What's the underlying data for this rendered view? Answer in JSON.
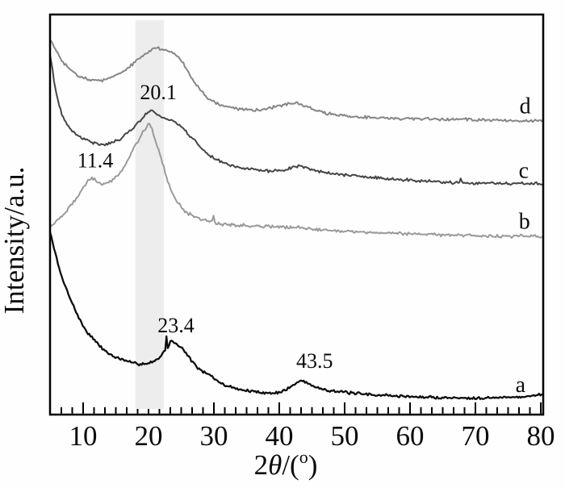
{
  "figure": {
    "background": "#fefefe",
    "axis_color": "#000000",
    "text_color": "#0a0a0a"
  },
  "chart_data": {
    "type": "line",
    "title": "",
    "xlabel": "2θ/(°)",
    "xlabel_parts": [
      {
        "t": "2"
      },
      {
        "t": "θ",
        "italic": true
      },
      {
        "t": "/("
      },
      {
        "t": "o",
        "sup": true
      },
      {
        "t": ")"
      }
    ],
    "ylabel": "Intensity/a.u.",
    "xlim": [
      5,
      80
    ],
    "ylim": [
      0,
      100
    ],
    "y_scale_note": "intensity in arbitrary units, normalized 0-100 of plot height",
    "x_major_ticks": [
      10,
      20,
      30,
      40,
      50,
      60,
      70,
      80
    ],
    "x_minor_ticks_per_major": 5,
    "grid": false,
    "legend_position": "curve-end-labels-right",
    "highlight_band": {
      "x0": 18.0,
      "x1": 22.35,
      "color": "#ededed"
    },
    "annotations": [
      {
        "text": "20.1",
        "x": 21.5,
        "y": 80.0
      },
      {
        "text": "11.4",
        "x": 11.85,
        "y": 63.0
      },
      {
        "text": "23.4",
        "x": 24.2,
        "y": 21.8
      },
      {
        "text": "43.5",
        "x": 45.4,
        "y": 12.9
      }
    ],
    "series": [
      {
        "name": "a",
        "color": "#0d0d0d",
        "stroke_width": 2.3,
        "noise": 0.42,
        "seed": 7,
        "label": {
          "text": "a",
          "x": 76.9,
          "y": 6.9
        },
        "points": [
          [
            4.9,
            45.8
          ],
          [
            5.7,
            40.7
          ],
          [
            6.5,
            35.5
          ],
          [
            7.8,
            30.0
          ],
          [
            9.0,
            25.4
          ],
          [
            10.2,
            21.6
          ],
          [
            11.5,
            19.0
          ],
          [
            12.7,
            16.9
          ],
          [
            14.3,
            14.9
          ],
          [
            16.0,
            13.7
          ],
          [
            17.7,
            12.9
          ],
          [
            19.3,
            12.7
          ],
          [
            20.7,
            13.3
          ],
          [
            21.7,
            14.3
          ],
          [
            22.4,
            15.9
          ],
          [
            22.6,
            16.6
          ],
          [
            22.75,
            19.3
          ],
          [
            22.9,
            16.9
          ],
          [
            23.4,
            18.3
          ],
          [
            24.2,
            17.7
          ],
          [
            25.2,
            16.5
          ],
          [
            26.3,
            14.1
          ],
          [
            27.8,
            11.3
          ],
          [
            29.5,
            9.7
          ],
          [
            31.2,
            7.7
          ],
          [
            33.1,
            6.7
          ],
          [
            34.9,
            6.0
          ],
          [
            37.0,
            5.6
          ],
          [
            39.3,
            5.4
          ],
          [
            41.1,
            6.3
          ],
          [
            42.3,
            7.5
          ],
          [
            43.5,
            8.5
          ],
          [
            44.7,
            7.5
          ],
          [
            46.4,
            6.5
          ],
          [
            48.8,
            5.8
          ],
          [
            52.3,
            5.2
          ],
          [
            56.3,
            4.8
          ],
          [
            61.4,
            4.4
          ],
          [
            66.4,
            4.2
          ],
          [
            71.5,
            4.2
          ],
          [
            76.4,
            4.4
          ],
          [
            80.4,
            5.0
          ]
        ]
      },
      {
        "name": "b",
        "color": "#9a9a9a",
        "stroke_width": 2,
        "noise": 0.5,
        "seed": 19,
        "label": {
          "text": "b",
          "x": 77.5,
          "y": 47.8
        },
        "points": [
          [
            4.9,
            46.8
          ],
          [
            5.9,
            48.4
          ],
          [
            7.2,
            50.4
          ],
          [
            8.4,
            52.8
          ],
          [
            9.6,
            55.6
          ],
          [
            10.6,
            58.1
          ],
          [
            11.4,
            59.1
          ],
          [
            12.1,
            58.1
          ],
          [
            13.0,
            57.7
          ],
          [
            14.0,
            58.1
          ],
          [
            14.9,
            59.3
          ],
          [
            16.0,
            61.3
          ],
          [
            17.0,
            64.1
          ],
          [
            18.0,
            67.3
          ],
          [
            19.0,
            70.2
          ],
          [
            19.6,
            71.6
          ],
          [
            20.1,
            72.4
          ],
          [
            20.6,
            71.0
          ],
          [
            21.2,
            67.9
          ],
          [
            22.0,
            63.7
          ],
          [
            22.8,
            59.1
          ],
          [
            23.7,
            55.2
          ],
          [
            24.7,
            52.4
          ],
          [
            25.8,
            50.6
          ],
          [
            27.2,
            49.4
          ],
          [
            28.8,
            48.6
          ],
          [
            29.75,
            48.2
          ],
          [
            29.95,
            49.9
          ],
          [
            30.15,
            48.0
          ],
          [
            30.6,
            47.8
          ],
          [
            33.1,
            47.4
          ],
          [
            35.6,
            47.2
          ],
          [
            38.6,
            47.0
          ],
          [
            41.7,
            46.8
          ],
          [
            45.4,
            46.4
          ],
          [
            49.1,
            46.0
          ],
          [
            52.8,
            45.6
          ],
          [
            56.5,
            45.4
          ],
          [
            60.2,
            45.2
          ],
          [
            64.6,
            45.0
          ],
          [
            68.9,
            44.8
          ],
          [
            73.2,
            44.6
          ],
          [
            76.9,
            44.6
          ],
          [
            80.4,
            44.4
          ]
        ]
      },
      {
        "name": "c",
        "color": "#454545",
        "stroke_width": 2,
        "noise": 0.45,
        "seed": 41,
        "label": {
          "text": "c",
          "x": 77.4,
          "y": 60.5
        },
        "points": [
          [
            4.9,
            90.1
          ],
          [
            5.3,
            86.5
          ],
          [
            5.7,
            81.9
          ],
          [
            6.3,
            77.4
          ],
          [
            6.9,
            74.4
          ],
          [
            7.8,
            72.0
          ],
          [
            8.6,
            70.4
          ],
          [
            9.8,
            69.2
          ],
          [
            10.9,
            68.3
          ],
          [
            12.2,
            67.7
          ],
          [
            13.7,
            67.7
          ],
          [
            15.2,
            68.5
          ],
          [
            16.5,
            70.0
          ],
          [
            17.8,
            72.0
          ],
          [
            18.9,
            73.8
          ],
          [
            19.7,
            75.2
          ],
          [
            20.4,
            76.0
          ],
          [
            21.1,
            75.4
          ],
          [
            22.0,
            74.4
          ],
          [
            23.0,
            73.8
          ],
          [
            24.0,
            73.2
          ],
          [
            25.1,
            71.8
          ],
          [
            26.3,
            69.8
          ],
          [
            27.7,
            67.3
          ],
          [
            29.0,
            65.3
          ],
          [
            30.4,
            63.7
          ],
          [
            31.9,
            62.7
          ],
          [
            33.7,
            61.9
          ],
          [
            35.8,
            61.3
          ],
          [
            38.0,
            60.9
          ],
          [
            40.2,
            61.1
          ],
          [
            42.0,
            61.7
          ],
          [
            43.2,
            62.1
          ],
          [
            44.6,
            61.5
          ],
          [
            46.4,
            60.7
          ],
          [
            49.1,
            60.1
          ],
          [
            52.6,
            59.5
          ],
          [
            56.5,
            58.9
          ],
          [
            60.9,
            58.5
          ],
          [
            65.2,
            58.1
          ],
          [
            67.5,
            58.0
          ],
          [
            67.7,
            59.1
          ],
          [
            67.9,
            57.9
          ],
          [
            70.1,
            57.9
          ],
          [
            75.0,
            57.7
          ],
          [
            80.4,
            57.7
          ]
        ]
      },
      {
        "name": "d",
        "color": "#868686",
        "stroke_width": 2,
        "noise": 0.45,
        "seed": 83,
        "label": {
          "text": "d",
          "x": 77.6,
          "y": 76.6
        },
        "points": [
          [
            4.9,
            93.8
          ],
          [
            5.7,
            91.5
          ],
          [
            6.5,
            89.1
          ],
          [
            7.5,
            87.1
          ],
          [
            8.6,
            85.5
          ],
          [
            9.8,
            84.5
          ],
          [
            11.0,
            83.7
          ],
          [
            12.3,
            83.5
          ],
          [
            13.8,
            83.9
          ],
          [
            15.4,
            85.1
          ],
          [
            16.9,
            86.7
          ],
          [
            18.4,
            88.7
          ],
          [
            19.6,
            90.3
          ],
          [
            20.7,
            91.3
          ],
          [
            21.6,
            91.5
          ],
          [
            22.3,
            91.1
          ],
          [
            23.1,
            90.9
          ],
          [
            24.0,
            90.3
          ],
          [
            24.9,
            88.7
          ],
          [
            25.8,
            86.5
          ],
          [
            26.8,
            83.7
          ],
          [
            27.9,
            81.3
          ],
          [
            29.1,
            79.2
          ],
          [
            30.5,
            77.8
          ],
          [
            32.1,
            77.0
          ],
          [
            34.0,
            76.4
          ],
          [
            35.9,
            76.2
          ],
          [
            37.8,
            76.4
          ],
          [
            39.4,
            77.0
          ],
          [
            40.7,
            77.4
          ],
          [
            42.2,
            77.8
          ],
          [
            43.6,
            77.4
          ],
          [
            45.2,
            76.4
          ],
          [
            47.0,
            75.4
          ],
          [
            49.1,
            74.8
          ],
          [
            52.0,
            74.4
          ],
          [
            55.3,
            74.2
          ],
          [
            59.0,
            74.0
          ],
          [
            63.3,
            73.8
          ],
          [
            68.3,
            73.8
          ],
          [
            73.2,
            73.6
          ],
          [
            77.5,
            73.4
          ],
          [
            80.4,
            73.4
          ]
        ]
      }
    ]
  }
}
